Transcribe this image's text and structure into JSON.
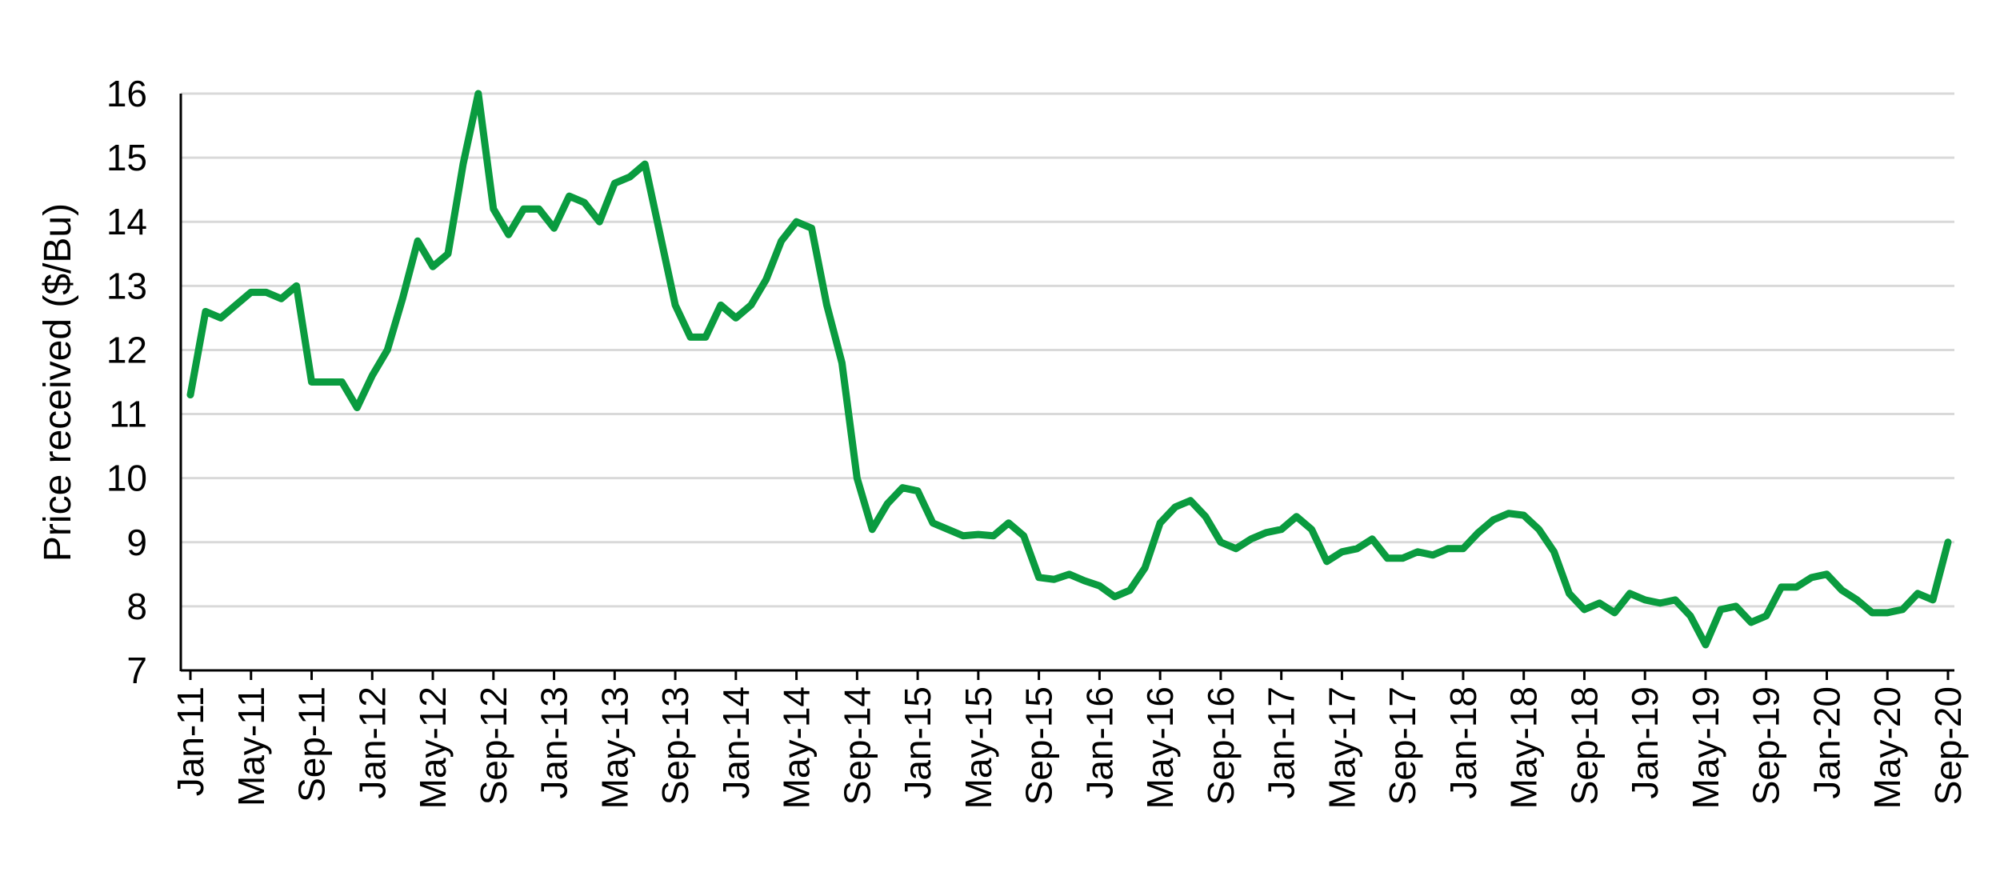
{
  "chart_data": {
    "type": "line",
    "ylabel": "Price received ($/Bu)",
    "xlabel": "",
    "ylim": [
      7,
      16
    ],
    "y_ticks": [
      7,
      8,
      9,
      10,
      11,
      12,
      13,
      14,
      15,
      16
    ],
    "grid": true,
    "grid_color": "#d9d9d9",
    "line_color": "#0a9b3f",
    "x_tick_labels": [
      "Jan-11",
      "May-11",
      "Sep-11",
      "Jan-12",
      "May-12",
      "Sep-12",
      "Jan-13",
      "May-13",
      "Sep-13",
      "Jan-14",
      "May-14",
      "Sep-14",
      "Jan-15",
      "May-15",
      "Sep-15",
      "Jan-16",
      "May-16",
      "Sep-16",
      "Jan-17",
      "May-17",
      "Sep-17",
      "Jan-18",
      "May-18",
      "Sep-18",
      "Jan-19",
      "May-19",
      "Sep-19",
      "Jan-20",
      "May-20",
      "Sep-20"
    ],
    "x_tick_every": 4,
    "series": [
      {
        "x": [
          "Jan-11",
          "Feb-11",
          "Mar-11",
          "Apr-11",
          "May-11",
          "Jun-11",
          "Jul-11",
          "Aug-11",
          "Sep-11",
          "Oct-11",
          "Nov-11",
          "Dec-11",
          "Jan-12",
          "Feb-12",
          "Mar-12",
          "Apr-12",
          "May-12",
          "Jun-12",
          "Jul-12",
          "Aug-12",
          "Sep-12",
          "Oct-12",
          "Nov-12",
          "Dec-12",
          "Jan-13",
          "Feb-13",
          "Mar-13",
          "Apr-13",
          "May-13",
          "Jun-13",
          "Jul-13",
          "Aug-13",
          "Sep-13",
          "Oct-13",
          "Nov-13",
          "Dec-13",
          "Jan-14",
          "Feb-14",
          "Mar-14",
          "Apr-14",
          "May-14",
          "Jun-14",
          "Jul-14",
          "Aug-14",
          "Sep-14",
          "Oct-14",
          "Nov-14",
          "Dec-14",
          "Jan-15",
          "Feb-15",
          "Mar-15",
          "Apr-15",
          "May-15",
          "Jun-15",
          "Jul-15",
          "Aug-15",
          "Sep-15",
          "Oct-15",
          "Nov-15",
          "Dec-15",
          "Jan-16",
          "Feb-16",
          "Mar-16",
          "Apr-16",
          "May-16",
          "Jun-16",
          "Jul-16",
          "Aug-16",
          "Sep-16",
          "Oct-16",
          "Nov-16",
          "Dec-16",
          "Jan-17",
          "Feb-17",
          "Mar-17",
          "Apr-17",
          "May-17",
          "Jun-17",
          "Jul-17",
          "Aug-17",
          "Sep-17",
          "Oct-17",
          "Nov-17",
          "Dec-17",
          "Jan-18",
          "Feb-18",
          "Mar-18",
          "Apr-18",
          "May-18",
          "Jun-18",
          "Jul-18",
          "Aug-18",
          "Sep-18",
          "Oct-18",
          "Nov-18",
          "Dec-18",
          "Jan-19",
          "Feb-19",
          "Mar-19",
          "Apr-19",
          "May-19",
          "Jun-19",
          "Jul-19",
          "Aug-19",
          "Sep-19",
          "Oct-19",
          "Nov-19",
          "Dec-19",
          "Jan-20",
          "Feb-20",
          "Mar-20",
          "Apr-20",
          "May-20",
          "Jun-20",
          "Jul-20",
          "Aug-20",
          "Sep-20"
        ],
        "values": [
          11.3,
          12.6,
          12.5,
          12.7,
          12.9,
          12.9,
          12.8,
          13.0,
          11.5,
          11.5,
          11.5,
          11.1,
          11.6,
          12.0,
          12.8,
          13.7,
          13.3,
          13.5,
          14.9,
          16.0,
          14.2,
          13.8,
          14.2,
          14.2,
          13.9,
          14.4,
          14.3,
          14.0,
          14.6,
          14.7,
          14.9,
          13.8,
          12.7,
          12.2,
          12.2,
          12.7,
          12.5,
          12.7,
          13.1,
          13.7,
          14.0,
          13.9,
          12.7,
          11.8,
          10.0,
          9.2,
          9.6,
          9.85,
          9.8,
          9.3,
          9.2,
          9.1,
          9.12,
          9.1,
          9.3,
          9.1,
          8.45,
          8.42,
          8.5,
          8.4,
          8.32,
          8.15,
          8.25,
          8.6,
          9.3,
          9.55,
          9.65,
          9.4,
          9.0,
          8.9,
          9.05,
          9.15,
          9.2,
          9.4,
          9.2,
          8.7,
          8.85,
          8.9,
          9.05,
          8.75,
          8.75,
          8.85,
          8.8,
          8.9,
          8.9,
          9.15,
          9.35,
          9.45,
          9.42,
          9.2,
          8.85,
          8.2,
          7.95,
          8.05,
          7.9,
          8.2,
          8.1,
          8.05,
          8.1,
          7.85,
          7.4,
          7.95,
          8.0,
          7.75,
          7.85,
          8.3,
          8.3,
          8.45,
          8.5,
          8.25,
          8.1,
          7.9,
          7.9,
          7.95,
          8.2,
          8.1,
          9.0
        ]
      }
    ]
  }
}
